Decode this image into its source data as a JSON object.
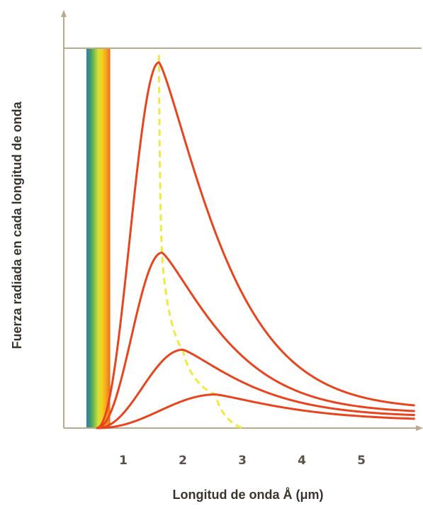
{
  "chart_data": {
    "type": "line",
    "title": "",
    "xlabel": "Longitud de onda Å (μm)",
    "ylabel": "Fuerza radiada en cada longitud de onda",
    "xlim": [
      0,
      5.75
    ],
    "ylim": [
      0,
      1.05
    ],
    "x_ticks": [
      "1",
      "2",
      "3",
      "4",
      "5"
    ],
    "x_tick_values": [
      1,
      2,
      3,
      4,
      5
    ],
    "grid": false,
    "legend": "none",
    "series": [
      {
        "peak_x": 1.6,
        "peak_y": 0.98,
        "tail_y": 0.05
      },
      {
        "peak_x": 1.65,
        "peak_y": 0.47,
        "tail_y": 0.04
      },
      {
        "peak_x": 2.0,
        "peak_y": 0.21,
        "tail_y": 0.03
      },
      {
        "peak_x": 2.55,
        "peak_y": 0.09,
        "tail_y": 0.02
      }
    ],
    "wien_curve": {
      "style": "dashed",
      "x": [
        1.6,
        1.65,
        2.0,
        2.55,
        3.0
      ],
      "y": [
        1.0,
        0.47,
        0.21,
        0.09,
        0.0
      ]
    },
    "visible_band": {
      "x_range": [
        0.38,
        0.78
      ]
    },
    "colors": {
      "axis": "#b9ab8c",
      "curve": "#e8451f",
      "wien": "#f0ea3c",
      "band": [
        "#3a7ab0",
        "#3f9a6a",
        "#7fc04a",
        "#d6e23a",
        "#f4d018",
        "#f5a320",
        "#ee6a1e"
      ]
    }
  }
}
